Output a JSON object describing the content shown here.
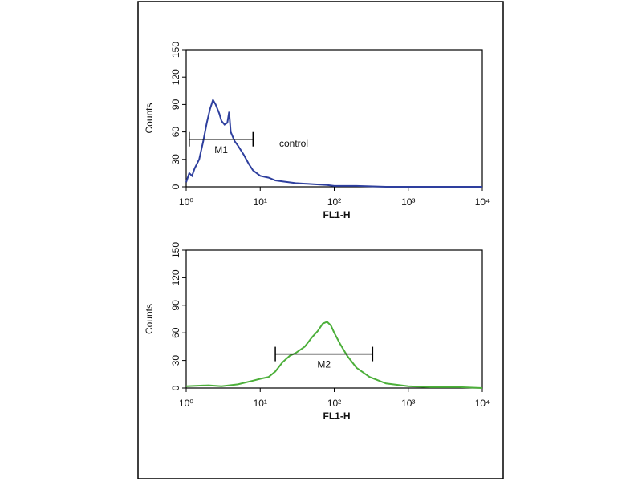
{
  "chart_data": [
    {
      "type": "line",
      "xlabel": "FL1-H",
      "ylabel": "Counts",
      "xscale": "log",
      "color": "#2e3f9e",
      "xlim": [
        1,
        10000
      ],
      "ylim": [
        0,
        150
      ],
      "xticks": [
        {
          "value": 1,
          "label": "10⁰"
        },
        {
          "value": 10,
          "label": "10¹"
        },
        {
          "value": 100,
          "label": "10²"
        },
        {
          "value": 1000,
          "label": "10³"
        },
        {
          "value": 10000,
          "label": "10⁴"
        }
      ],
      "yticks": [
        0,
        30,
        60,
        90,
        120,
        150
      ],
      "x": [
        1.0,
        1.1,
        1.2,
        1.3,
        1.5,
        1.7,
        1.9,
        2.1,
        2.3,
        2.5,
        2.8,
        3.0,
        3.3,
        3.6,
        3.8,
        4.0,
        4.5,
        5,
        6,
        7,
        8,
        10,
        13,
        16,
        20,
        30,
        50,
        80,
        100,
        200,
        500,
        1000,
        10000
      ],
      "values": [
        5,
        15,
        12,
        20,
        30,
        50,
        70,
        85,
        95,
        90,
        80,
        72,
        68,
        70,
        82,
        60,
        50,
        45,
        35,
        25,
        18,
        12,
        10,
        7,
        6,
        4,
        3,
        2,
        1,
        1,
        0,
        0,
        0
      ],
      "markers": [
        {
          "label": "M1",
          "x": [
            1.1,
            8
          ],
          "y": 52
        }
      ],
      "annotations": [
        {
          "text": "control"
        }
      ]
    },
    {
      "type": "line",
      "xlabel": "FL1-H",
      "ylabel": "Counts",
      "xscale": "log",
      "color": "#4caf3a",
      "xlim": [
        1,
        10000
      ],
      "ylim": [
        0,
        150
      ],
      "xticks": [
        {
          "value": 1,
          "label": "10⁰"
        },
        {
          "value": 10,
          "label": "10¹"
        },
        {
          "value": 100,
          "label": "10²"
        },
        {
          "value": 1000,
          "label": "10³"
        },
        {
          "value": 10000,
          "label": "10⁴"
        }
      ],
      "yticks": [
        0,
        30,
        60,
        90,
        120,
        150
      ],
      "x": [
        1,
        2,
        3,
        5,
        8,
        10,
        13,
        16,
        20,
        25,
        30,
        40,
        50,
        60,
        70,
        80,
        90,
        100,
        120,
        150,
        200,
        300,
        500,
        1000,
        2000,
        5000,
        10000
      ],
      "values": [
        2,
        3,
        2,
        4,
        8,
        10,
        12,
        18,
        28,
        35,
        38,
        45,
        55,
        62,
        70,
        72,
        68,
        60,
        48,
        35,
        22,
        12,
        5,
        2,
        1,
        1,
        0
      ],
      "markers": [
        {
          "label": "M2",
          "x": [
            16,
            330
          ],
          "y": 37
        }
      ]
    }
  ]
}
